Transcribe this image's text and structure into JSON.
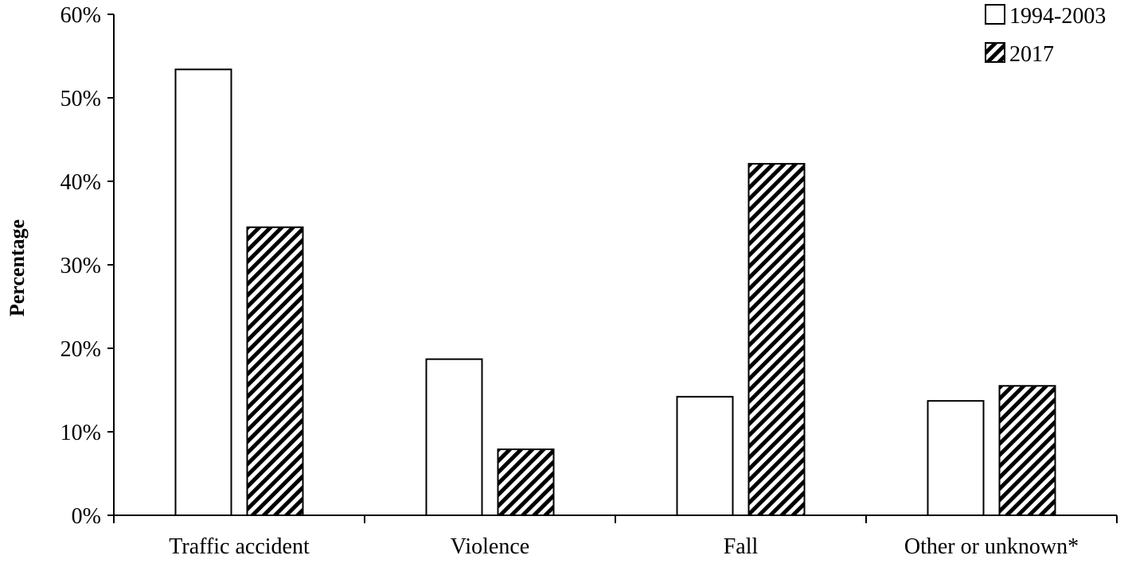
{
  "chart_data": {
    "type": "bar",
    "ylabel": "Percentage",
    "xlabel": "",
    "title": "",
    "ylim": [
      0,
      60
    ],
    "y_ticks": [
      "0%",
      "10%",
      "20%",
      "30%",
      "40%",
      "50%",
      "60%"
    ],
    "categories": [
      "Traffic accident",
      "Violence",
      "Fall",
      "Other or unknown*"
    ],
    "series": [
      {
        "name": "1994-2003",
        "values": [
          53.4,
          18.7,
          14.2,
          13.7
        ],
        "fill": "white"
      },
      {
        "name": "2017",
        "values": [
          34.5,
          7.9,
          42.1,
          15.5
        ],
        "fill": "diagonal-hatch"
      }
    ],
    "legend_position": "top-right",
    "grid": false,
    "colors": {
      "stroke": "#000000",
      "background": "#ffffff"
    }
  }
}
